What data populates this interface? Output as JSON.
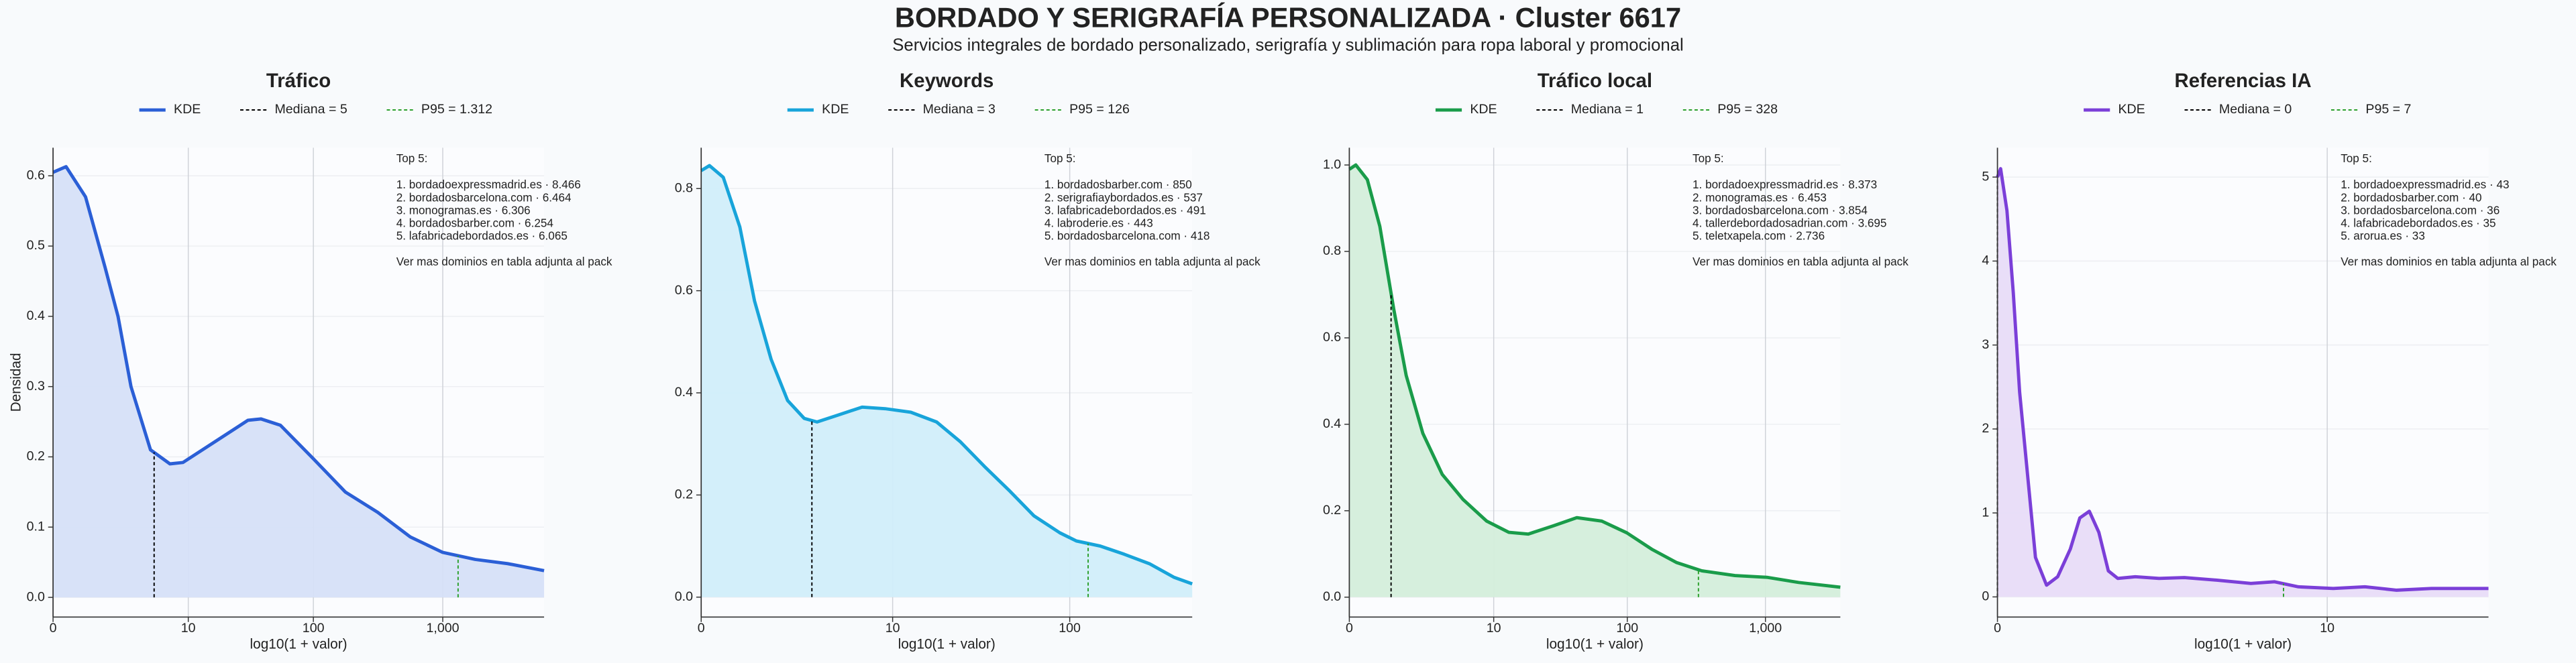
{
  "title": "BORDADO Y SERIGRAFÍA PERSONALIZADA · Cluster 6617",
  "subtitle": "Servicios integrales de bordado personalizado, serigrafía y sublimación para ropa laboral y promocional",
  "chart_data": [
    {
      "type": "area",
      "title": "Tráfico",
      "xlabel": "log10(1 + valor)",
      "ylabel": "Densidad",
      "xlim": [
        0,
        3.78
      ],
      "ylim": [
        -0.028,
        0.64
      ],
      "grid": true,
      "xticks": [
        0,
        {
          "value": 1.041,
          "label": "10"
        },
        {
          "value": 2.004,
          "label": "100"
        },
        {
          "value": 3.0,
          "label": "1,000"
        }
      ],
      "yticks": [
        {
          "value": 0,
          "label": "0.0"
        },
        0.1,
        0.2,
        0.3,
        0.4,
        0.5,
        0.6
      ],
      "series": [
        {
          "name": "KDE",
          "color": "#2b5fd6",
          "fill": "#d6e0f8",
          "x": [
            0,
            0.1,
            0.25,
            0.4,
            0.5,
            0.6,
            0.75,
            0.9,
            1.0,
            1.25,
            1.5,
            1.6,
            1.75,
            2.0,
            2.25,
            2.5,
            2.75,
            3.0,
            3.25,
            3.5,
            3.78
          ],
          "values": [
            0.605,
            0.613,
            0.57,
            0.47,
            0.4,
            0.3,
            0.21,
            0.19,
            0.192,
            0.222,
            0.252,
            0.254,
            0.245,
            0.198,
            0.15,
            0.121,
            0.086,
            0.064,
            0.054,
            0.048,
            0.038
          ]
        }
      ],
      "median": {
        "name": "Mediana = 5",
        "x": 0.778,
        "color": "#000000"
      },
      "p95": {
        "name": "P95 = 1.312",
        "x": 3.118,
        "color": "#2ca02c"
      },
      "annotation": {
        "title": "Top 5:",
        "lines": [
          "1. bordadoexpressmadrid.es · 8.466",
          "2. bordadosbarcelona.com · 6.464",
          "3. monogramas.es · 6.306",
          "4. bordadosbarber.com · 6.254",
          "5. lafabricadebordados.es · 6.065"
        ],
        "note": "Ver mas dominios en tabla adjunta al pack"
      }
    },
    {
      "type": "area",
      "title": "Keywords",
      "xlabel": "log10(1 + valor)",
      "xlim": [
        0,
        2.67
      ],
      "ylim": [
        -0.039,
        0.88
      ],
      "grid": true,
      "xticks": [
        0,
        {
          "value": 1.041,
          "label": "10"
        },
        {
          "value": 2.004,
          "label": "100"
        }
      ],
      "yticks": [
        {
          "value": 0,
          "label": "0.0"
        },
        0.2,
        0.4,
        0.6,
        0.8
      ],
      "series": [
        {
          "name": "KDE",
          "color": "#18a4da",
          "fill": "#d1eefa",
          "x": [
            0,
            0.045,
            0.12,
            0.21,
            0.29,
            0.38,
            0.47,
            0.56,
            0.63,
            0.74,
            0.875,
            1.0,
            1.14,
            1.28,
            1.41,
            1.54,
            1.68,
            1.81,
            1.95,
            2.04,
            2.17,
            2.3,
            2.44,
            2.57,
            2.67
          ],
          "values": [
            0.835,
            0.845,
            0.822,
            0.725,
            0.58,
            0.466,
            0.385,
            0.35,
            0.343,
            0.356,
            0.372,
            0.369,
            0.362,
            0.343,
            0.304,
            0.256,
            0.207,
            0.159,
            0.126,
            0.11,
            0.1,
            0.084,
            0.065,
            0.039,
            0.026
          ]
        }
      ],
      "median": {
        "name": "Mediana = 3",
        "x": 0.602,
        "color": "#000000"
      },
      "p95": {
        "name": "P95 = 126",
        "x": 2.104,
        "color": "#2ca02c"
      },
      "annotation": {
        "title": "Top 5:",
        "lines": [
          "1. bordadosbarber.com · 850",
          "2. serigrafiaybordados.es · 537",
          "3. lafabricadebordados.es · 491",
          "4. labroderie.es · 443",
          "5. bordadosbarcelona.com · 418"
        ],
        "note": "Ver mas dominios en tabla adjunta al pack"
      }
    },
    {
      "type": "area",
      "title": "Tráfico local",
      "xlabel": "log10(1 + valor)",
      "xlim": [
        0,
        3.54
      ],
      "ylim": [
        -0.046,
        1.04
      ],
      "grid": true,
      "xticks": [
        0,
        {
          "value": 1.041,
          "label": "10"
        },
        {
          "value": 2.004,
          "label": "100"
        },
        {
          "value": 3.0,
          "label": "1,000"
        }
      ],
      "yticks": [
        {
          "value": 0,
          "label": "0.0"
        },
        0.2,
        0.4,
        0.6,
        0.8,
        {
          "value": 1,
          "label": "1.0"
        }
      ],
      "series": [
        {
          "name": "KDE",
          "color": "#1a9c4a",
          "fill": "#d4eedb",
          "x": [
            0,
            0.047,
            0.13,
            0.22,
            0.32,
            0.41,
            0.53,
            0.67,
            0.82,
            0.99,
            1.15,
            1.29,
            1.47,
            1.64,
            1.82,
            2.0,
            2.18,
            2.36,
            2.54,
            2.78,
            3.01,
            3.24,
            3.54
          ],
          "values": [
            0.99,
            1.0,
            0.966,
            0.858,
            0.667,
            0.513,
            0.379,
            0.284,
            0.226,
            0.176,
            0.15,
            0.146,
            0.165,
            0.184,
            0.176,
            0.149,
            0.111,
            0.08,
            0.061,
            0.05,
            0.046,
            0.034,
            0.023
          ]
        }
      ],
      "median": {
        "name": "Mediana = 1",
        "x": 0.301,
        "color": "#000000"
      },
      "p95": {
        "name": "P95 = 328",
        "x": 2.517,
        "color": "#2ca02c"
      },
      "annotation": {
        "title": "Top 5:",
        "lines": [
          "1. bordadoexpressmadrid.es · 8.373",
          "2. monogramas.es · 6.453",
          "3. bordadosbarcelona.com · 3.854",
          "4. tallerdebordadosadrian.com · 3.695",
          "5. teletxapela.com · 2.736"
        ],
        "note": "Ver mas dominios en tabla adjunta al pack"
      }
    },
    {
      "type": "area",
      "title": "Referencias IA",
      "xlabel": "log10(1 + valor)",
      "xlim": [
        0,
        1.55
      ],
      "ylim": [
        -0.24,
        5.35
      ],
      "grid": true,
      "xticks": [
        0,
        {
          "value": 1.041,
          "label": "10"
        }
      ],
      "yticks": [
        0,
        1,
        2,
        3,
        4,
        5
      ],
      "series": [
        {
          "name": "KDE",
          "color": "#7b3fd8",
          "fill": "#e8dcf8",
          "x": [
            0,
            0.01,
            0.03,
            0.05,
            0.07,
            0.1,
            0.12,
            0.155,
            0.19,
            0.23,
            0.26,
            0.29,
            0.32,
            0.35,
            0.38,
            0.435,
            0.51,
            0.59,
            0.69,
            0.8,
            0.875,
            0.95,
            1.06,
            1.16,
            1.26,
            1.37,
            1.55
          ],
          "values": [
            5.0,
            5.1,
            4.6,
            3.62,
            2.44,
            1.26,
            0.47,
            0.14,
            0.24,
            0.57,
            0.94,
            1.02,
            0.77,
            0.31,
            0.22,
            0.24,
            0.22,
            0.23,
            0.2,
            0.16,
            0.18,
            0.12,
            0.1,
            0.12,
            0.08,
            0.1,
            0.1
          ]
        }
      ],
      "median": {
        "name": "Mediana = 0",
        "x": 0,
        "color": "#000000"
      },
      "p95": {
        "name": "P95 = 7",
        "x": 0.903,
        "color": "#2ca02c"
      },
      "annotation": {
        "title": "Top 5:",
        "lines": [
          "1. bordadoexpressmadrid.es · 43",
          "2. bordadosbarber.com · 40",
          "3. bordadosbarcelona.com · 36",
          "4. lafabricadebordados.es · 35",
          "5. arorua.es · 33"
        ],
        "note": "Ver mas dominios en tabla adjunta al pack"
      }
    }
  ]
}
